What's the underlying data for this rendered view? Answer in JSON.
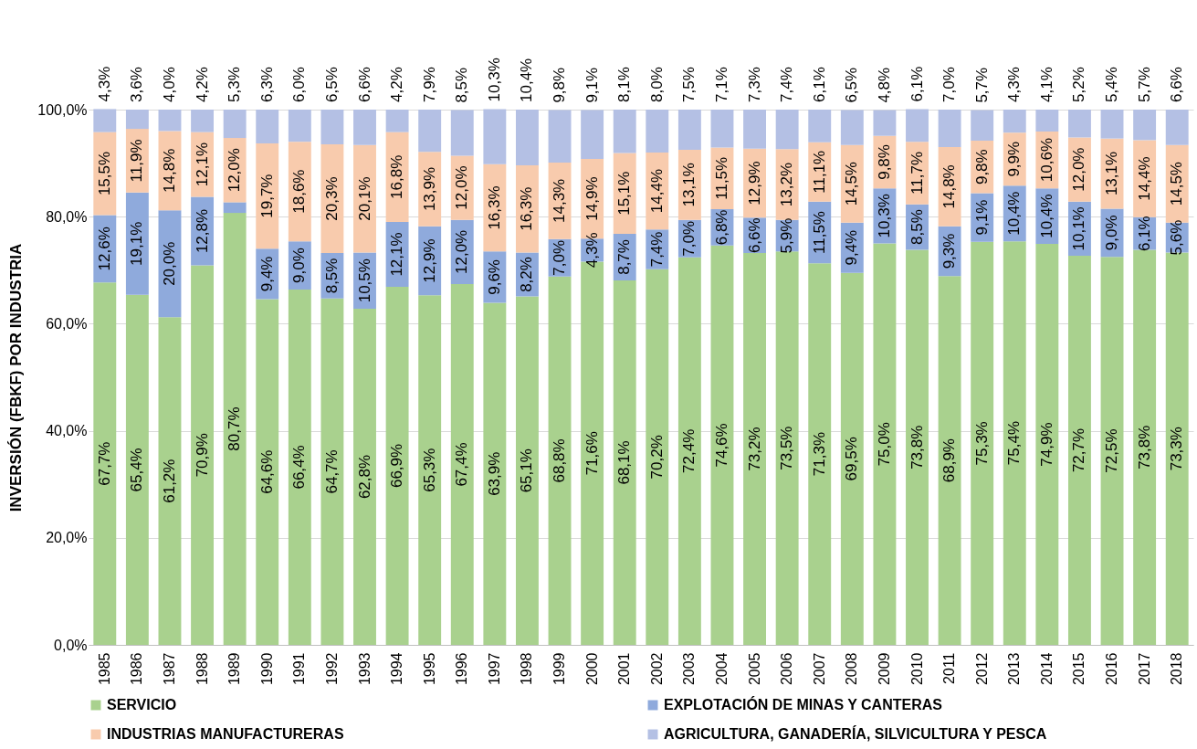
{
  "chart_data": {
    "type": "bar",
    "stacked": true,
    "ylabel": "INVERSIÓN  (FBKF)    POR INDUSTRIA",
    "categories": [
      "1985",
      "1986",
      "1987",
      "1988",
      "1989",
      "1990",
      "1991",
      "1992",
      "1993",
      "1994",
      "1995",
      "1996",
      "1997",
      "1998",
      "1999",
      "2000",
      "2001",
      "2002",
      "2003",
      "2004",
      "2005",
      "2006",
      "2007",
      "2008",
      "2009",
      "2010",
      "2011",
      "2012",
      "2013",
      "2014",
      "2015",
      "2016",
      "2017",
      "2018"
    ],
    "ylim": [
      0,
      100
    ],
    "yticks": [
      {
        "value": 0,
        "label": "0,0%"
      },
      {
        "value": 20,
        "label": "20,0%"
      },
      {
        "value": 40,
        "label": "40,0%"
      },
      {
        "value": 60,
        "label": "60,0%"
      },
      {
        "value": 80,
        "label": "80,0%"
      },
      {
        "value": 100,
        "label": "100,0%"
      }
    ],
    "grid": "y",
    "legend": "bottom",
    "series": [
      {
        "name": "SERVICIO",
        "color": "#a9d18e",
        "values": [
          67.7,
          65.4,
          61.2,
          70.9,
          80.7,
          64.6,
          66.4,
          64.7,
          62.8,
          66.9,
          65.3,
          67.4,
          63.9,
          65.1,
          68.8,
          71.6,
          68.1,
          70.2,
          72.4,
          74.6,
          73.2,
          73.5,
          71.3,
          69.5,
          75.0,
          73.8,
          68.9,
          75.3,
          75.4,
          74.9,
          72.7,
          72.5,
          73.8,
          73.3
        ],
        "value_labels": [
          "67,7%",
          "65,4%",
          "61,2%",
          "70,9%",
          "80,7%",
          "64,6%",
          "66,4%",
          "64,7%",
          "62,8%",
          "66,9%",
          "65,3%",
          "67,4%",
          "63,9%",
          "65,1%",
          "68,8%",
          "71,6%",
          "68,1%",
          "70,2%",
          "72,4%",
          "74,6%",
          "73,2%",
          "73,5%",
          "71,3%",
          "69,5%",
          "75,0%",
          "73,8%",
          "68,9%",
          "75,3%",
          "75,4%",
          "74,9%",
          "72,7%",
          "72,5%",
          "73,8%",
          "73,3%"
        ]
      },
      {
        "name": "EXPLOTACIÓN DE MINAS Y CANTERAS",
        "color": "#8faadc",
        "values": [
          12.6,
          19.1,
          20.0,
          12.8,
          2.0,
          9.4,
          9.0,
          8.5,
          10.5,
          12.1,
          12.9,
          12.0,
          9.6,
          8.2,
          7.0,
          4.3,
          8.7,
          7.4,
          7.0,
          6.8,
          6.6,
          5.9,
          11.5,
          9.4,
          10.3,
          8.5,
          9.3,
          9.1,
          10.4,
          10.4,
          10.1,
          9.0,
          6.1,
          5.6
        ],
        "value_labels": [
          "12,6%",
          "19,1%",
          "20,0%",
          "12,8%",
          null,
          "9,4%",
          "9,0%",
          "8,5%",
          "10,5%",
          "12,1%",
          "12,9%",
          "12,0%",
          "9,6%",
          "8,2%",
          "7,0%",
          "4,3%",
          "8,7%",
          "7,4%",
          "7,0%",
          "6,8%",
          "6,6%",
          "5,9%",
          "11,5%",
          "9,4%",
          "10,3%",
          "8,5%",
          "9,3%",
          "9,1%",
          "10,4%",
          "10,4%",
          "10,1%",
          "9,0%",
          "6,1%",
          "5,6%"
        ]
      },
      {
        "name": "INDUSTRIAS MANUFACTURERAS",
        "color": "#f8cbad",
        "values": [
          15.5,
          11.9,
          14.8,
          12.1,
          12.0,
          19.7,
          18.6,
          20.3,
          20.1,
          16.8,
          13.9,
          12.0,
          16.3,
          16.3,
          14.3,
          14.9,
          15.1,
          14.4,
          13.1,
          11.5,
          12.9,
          13.2,
          11.1,
          14.5,
          9.8,
          11.7,
          14.8,
          9.8,
          9.9,
          10.6,
          12.0,
          13.1,
          14.4,
          14.5
        ],
        "value_labels": [
          "15,5%",
          "11,9%",
          "14,8%",
          "12,1%",
          "12,0%",
          "19,7%",
          "18,6%",
          "20,3%",
          "20,1%",
          "16,8%",
          "13,9%",
          "12,0%",
          "16,3%",
          "16,3%",
          "14,3%",
          "14,9%",
          "15,1%",
          "14,4%",
          "13,1%",
          "11,5%",
          "12,9%",
          "13,2%",
          "11,1%",
          "14,5%",
          "9,8%",
          "11,7%",
          "14,8%",
          "9,8%",
          "9,9%",
          "10,6%",
          "12,0%",
          "13,1%",
          "14,4%",
          "14,5%"
        ]
      },
      {
        "name": "AGRICULTURA, GANADERÍA, SILVICULTURA Y PESCA",
        "color": "#b4c0e4",
        "values": [
          4.3,
          3.6,
          4.0,
          4.2,
          5.3,
          6.3,
          6.0,
          6.5,
          6.6,
          4.2,
          7.9,
          8.5,
          10.3,
          10.4,
          9.8,
          9.1,
          8.1,
          8.0,
          7.5,
          7.1,
          7.3,
          7.4,
          6.1,
          6.5,
          4.8,
          6.1,
          7.0,
          5.7,
          4.3,
          4.1,
          5.2,
          5.4,
          5.7,
          6.6
        ],
        "value_labels": [
          "4,3%",
          "3,6%",
          "4,0%",
          "4,2%",
          "5,3%",
          "6,3%",
          "6,0%",
          "6,5%",
          "6,6%",
          "4,2%",
          "7,9%",
          "8,5%",
          "10,3%",
          "10,4%",
          "9,8%",
          "9,1%",
          "8,1%",
          "8,0%",
          "7,5%",
          "7,1%",
          "7,3%",
          "7,4%",
          "6,1%",
          "6,5%",
          "4,8%",
          "6,1%",
          "7,0%",
          "5,7%",
          "4,3%",
          "4,1%",
          "5,2%",
          "5,4%",
          "5,7%",
          "6,6%"
        ]
      }
    ]
  }
}
